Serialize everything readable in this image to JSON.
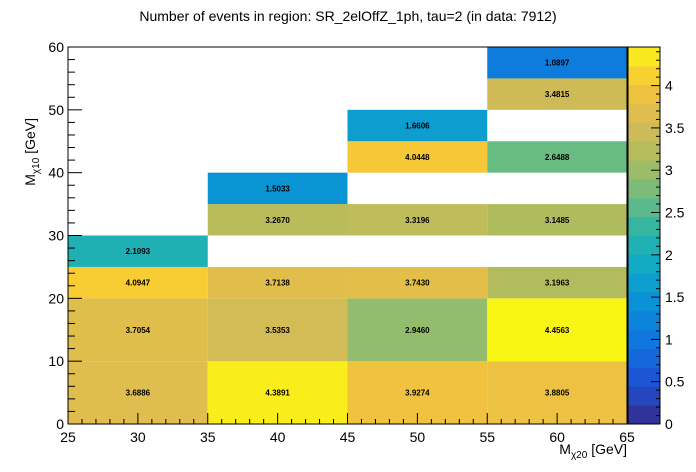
{
  "chart_data": {
    "type": "heatmap",
    "title": "Number of events in region: SR_2elOffZ_1ph, tau=2 (in data: 7912)",
    "xlabel": "M_χ20 [GeV]",
    "ylabel": "M_χ10 [GeV]",
    "xlim": [
      25,
      65
    ],
    "ylim": [
      0,
      60
    ],
    "x_ticks": [
      25,
      30,
      35,
      40,
      45,
      50,
      55,
      60,
      65
    ],
    "y_ticks": [
      0,
      10,
      20,
      30,
      40,
      50,
      60
    ],
    "colorbar": {
      "range": [
        0,
        4.4563
      ],
      "ticks": [
        0,
        0.5,
        1,
        1.5,
        2,
        2.5,
        3,
        3.5,
        4
      ]
    },
    "cells": [
      {
        "x": [
          25,
          35
        ],
        "y": [
          0,
          10
        ],
        "value": 3.6886,
        "label": "3.6886"
      },
      {
        "x": [
          35,
          45
        ],
        "y": [
          0,
          10
        ],
        "value": 4.3891,
        "label": "4.3891"
      },
      {
        "x": [
          45,
          55
        ],
        "y": [
          0,
          10
        ],
        "value": 3.9274,
        "label": "3.9274"
      },
      {
        "x": [
          55,
          65
        ],
        "y": [
          0,
          10
        ],
        "value": 3.8805,
        "label": "3.8805"
      },
      {
        "x": [
          25,
          35
        ],
        "y": [
          10,
          20
        ],
        "value": 3.7054,
        "label": "3.7054"
      },
      {
        "x": [
          35,
          45
        ],
        "y": [
          10,
          20
        ],
        "value": 3.5353,
        "label": "3.5353"
      },
      {
        "x": [
          45,
          55
        ],
        "y": [
          10,
          20
        ],
        "value": 2.946,
        "label": "2.9460"
      },
      {
        "x": [
          55,
          65
        ],
        "y": [
          10,
          20
        ],
        "value": 4.4563,
        "label": "4.4563"
      },
      {
        "x": [
          25,
          35
        ],
        "y": [
          20,
          25
        ],
        "value": 4.0947,
        "label": "4.0947"
      },
      {
        "x": [
          35,
          45
        ],
        "y": [
          20,
          25
        ],
        "value": 3.7138,
        "label": "3.7138"
      },
      {
        "x": [
          45,
          55
        ],
        "y": [
          20,
          25
        ],
        "value": 3.743,
        "label": "3.7430"
      },
      {
        "x": [
          55,
          65
        ],
        "y": [
          20,
          25
        ],
        "value": 3.1963,
        "label": "3.1963"
      },
      {
        "x": [
          25,
          35
        ],
        "y": [
          25,
          30
        ],
        "value": 2.1093,
        "label": "2.1093"
      },
      {
        "x": [
          35,
          45
        ],
        "y": [
          30,
          35
        ],
        "value": 3.267,
        "label": "3.2670"
      },
      {
        "x": [
          45,
          55
        ],
        "y": [
          30,
          35
        ],
        "value": 3.3196,
        "label": "3.3196"
      },
      {
        "x": [
          55,
          65
        ],
        "y": [
          30,
          35
        ],
        "value": 3.1485,
        "label": "3.1485"
      },
      {
        "x": [
          35,
          45
        ],
        "y": [
          35,
          40
        ],
        "value": 1.5033,
        "label": "1.5033"
      },
      {
        "x": [
          45,
          55
        ],
        "y": [
          40,
          45
        ],
        "value": 4.0448,
        "label": "4.0448"
      },
      {
        "x": [
          55,
          65
        ],
        "y": [
          40,
          45
        ],
        "value": 2.6488,
        "label": "2.6488"
      },
      {
        "x": [
          45,
          55
        ],
        "y": [
          45,
          50
        ],
        "value": 1.6606,
        "label": "1.6606"
      },
      {
        "x": [
          55,
          65
        ],
        "y": [
          50,
          55
        ],
        "value": 3.4815,
        "label": "3.4815"
      },
      {
        "x": [
          55,
          65
        ],
        "y": [
          55,
          60
        ],
        "value": 1.0897,
        "label": "1.0897"
      }
    ]
  }
}
